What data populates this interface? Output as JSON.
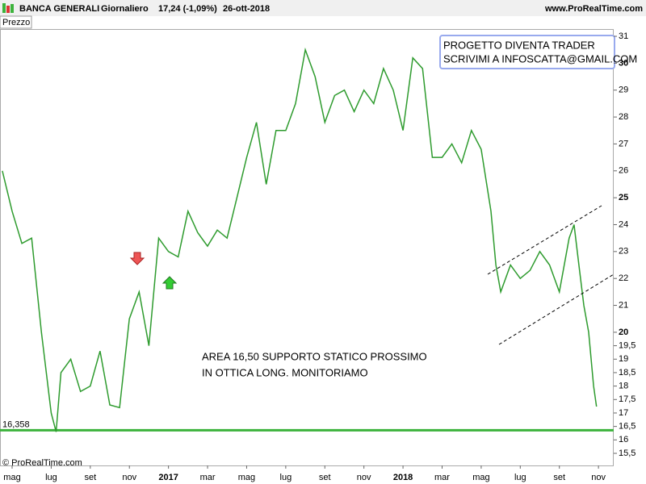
{
  "chart_data": {
    "type": "line",
    "title": "BANCA GENERALI",
    "interval": "Giornaliero",
    "last": "17,24 (-1,09%)",
    "date": "26-ott-2018",
    "site": "www.ProRealTime.com",
    "panel_label": "Prezzo",
    "copyright": "© ProRealTime.com",
    "box_note": [
      "PROGETTO DIVENTA TRADER",
      "SCRIVIMI A INFOSCATTA@GMAIL.COM"
    ],
    "note": [
      "AREA 16,50 SUPPORTO STATICO PROSSIMO",
      "IN OTTICA LONG. MONITORIAMO"
    ],
    "support_line": {
      "value": 16.358,
      "label": "16,358",
      "color": "#3cb33c"
    },
    "xlim": [
      3.38,
      34.78
    ],
    "xticks": [
      {
        "value": 4,
        "label": "mag"
      },
      {
        "value": 6,
        "label": "lug"
      },
      {
        "value": 8,
        "label": "set"
      },
      {
        "value": 10,
        "label": "nov"
      },
      {
        "value": 12,
        "label": "2017"
      },
      {
        "value": 14,
        "label": "mar"
      },
      {
        "value": 16,
        "label": "mag"
      },
      {
        "value": 18,
        "label": "lug"
      },
      {
        "value": 20,
        "label": "set"
      },
      {
        "value": 22,
        "label": "nov"
      },
      {
        "value": 24,
        "label": "2018"
      },
      {
        "value": 26,
        "label": "mar"
      },
      {
        "value": 28,
        "label": "mag"
      },
      {
        "value": 30,
        "label": "lug"
      },
      {
        "value": 32,
        "label": "set"
      },
      {
        "value": 34,
        "label": "nov"
      }
    ],
    "ylim": [
      15.05,
      31.24
    ],
    "yticks": [
      {
        "value": 15.5,
        "label": "15,5"
      },
      16,
      {
        "value": 16.5,
        "label": "16,5"
      },
      17,
      {
        "value": 17.5,
        "label": "17,5"
      },
      18,
      {
        "value": 18.5,
        "label": "18,5"
      },
      19,
      {
        "value": 19.5,
        "label": "19,5"
      },
      20,
      21,
      22,
      23,
      24,
      25,
      26,
      27,
      28,
      29,
      30,
      31
    ],
    "series": [
      {
        "name": "Prezzo",
        "color": "#2e9b2e",
        "x": [
          3.5,
          4,
          4.5,
          5,
          5.5,
          6,
          6.25,
          6.5,
          7,
          7.5,
          8,
          8.5,
          9,
          9.5,
          10,
          10.5,
          11,
          11.5,
          12,
          12.5,
          13,
          13.5,
          14,
          14.5,
          15,
          15.5,
          16,
          16.5,
          17,
          17.5,
          18,
          18.5,
          19,
          19.5,
          20,
          20.5,
          21,
          21.5,
          22,
          22.5,
          23,
          23.5,
          24,
          24.5,
          25,
          25.5,
          26,
          26.5,
          27,
          27.5,
          28,
          28.5,
          28.75,
          29,
          29.5,
          30,
          30.5,
          31,
          31.5,
          32,
          32.5,
          32.75,
          33,
          33.25,
          33.5,
          33.75,
          33.9
        ],
        "values": [
          26.0,
          24.5,
          23.3,
          23.5,
          20.0,
          17.0,
          16.3,
          18.5,
          19.0,
          17.8,
          18.0,
          19.3,
          17.3,
          17.2,
          20.5,
          21.5,
          19.5,
          23.5,
          23.0,
          22.8,
          24.5,
          23.7,
          23.2,
          23.8,
          23.5,
          25.0,
          26.5,
          27.8,
          25.5,
          27.5,
          27.5,
          28.5,
          30.5,
          29.5,
          27.8,
          28.8,
          29.0,
          28.2,
          29.0,
          28.5,
          29.8,
          29.0,
          27.5,
          30.2,
          29.8,
          26.5,
          26.5,
          27.0,
          26.3,
          27.5,
          26.8,
          24.5,
          22.5,
          21.5,
          22.5,
          22.0,
          22.3,
          23.0,
          22.5,
          21.5,
          23.5,
          24.0,
          22.5,
          21.0,
          20.0,
          18.0,
          17.24
        ]
      }
    ]
  }
}
